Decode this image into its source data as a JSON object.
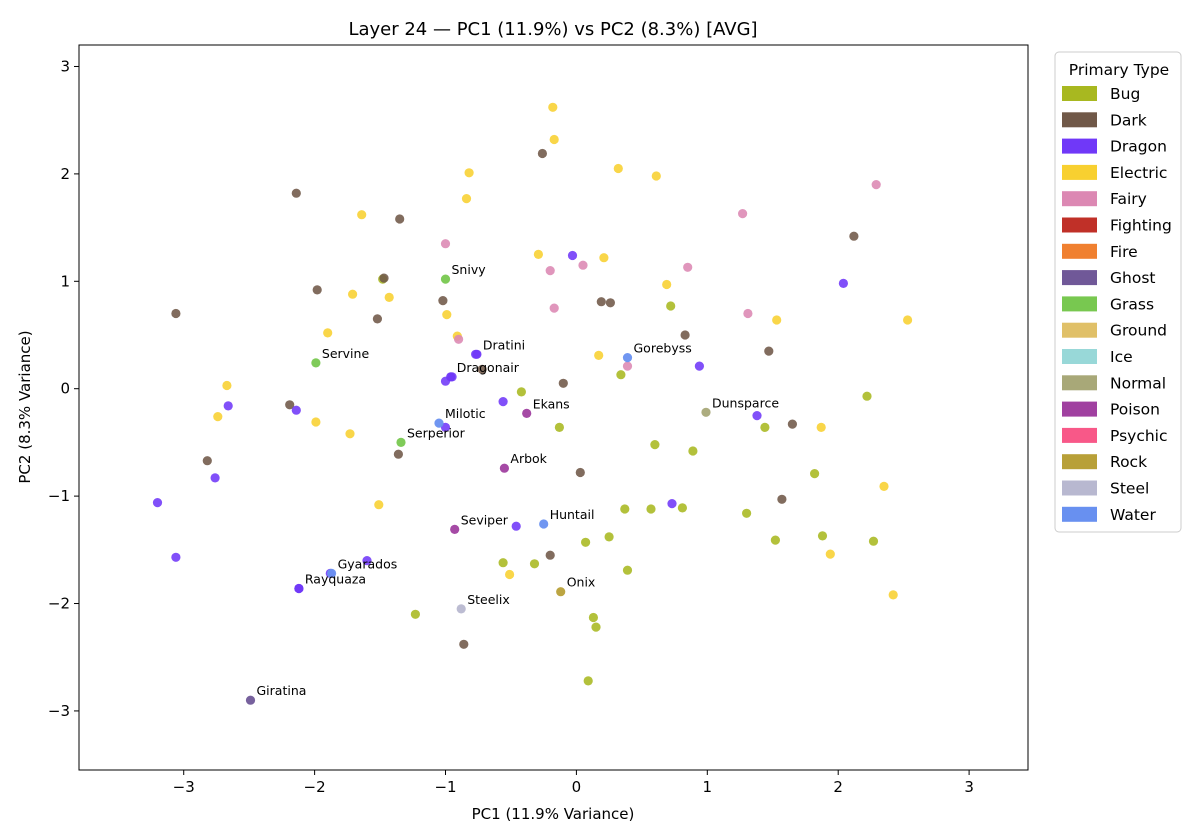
{
  "chart_data": {
    "type": "scatter",
    "title": "Layer 24 — PC1 (11.9%) vs PC2 (8.3%) [AVG]",
    "xlabel": "PC1 (11.9% Variance)",
    "ylabel": "PC2 (8.3% Variance)",
    "xlim": [
      -3.8,
      3.45
    ],
    "ylim": [
      -3.55,
      3.2
    ],
    "xticks": [
      -3,
      -2,
      -1,
      0,
      1,
      2,
      3
    ],
    "yticks": [
      -3,
      -2,
      -1,
      0,
      1,
      2,
      3
    ],
    "xtick_labels": [
      "−3",
      "−2",
      "−1",
      "0",
      "1",
      "2",
      "3"
    ],
    "ytick_labels": [
      "−3",
      "−2",
      "−1",
      "0",
      "1",
      "2",
      "3"
    ],
    "grid": false,
    "legend": {
      "title": "Primary Type",
      "placement": "outside-right-top",
      "entries": [
        {
          "name": "Bug",
          "color": "#a8b820"
        },
        {
          "name": "Dark",
          "color": "#705848"
        },
        {
          "name": "Dragon",
          "color": "#7038f8"
        },
        {
          "name": "Electric",
          "color": "#f8d030"
        },
        {
          "name": "Fairy",
          "color": "#dc88b3"
        },
        {
          "name": "Fighting",
          "color": "#c03028"
        },
        {
          "name": "Fire",
          "color": "#f08030"
        },
        {
          "name": "Ghost",
          "color": "#705898"
        },
        {
          "name": "Grass",
          "color": "#78c850"
        },
        {
          "name": "Ground",
          "color": "#e0c068"
        },
        {
          "name": "Ice",
          "color": "#98d8d8"
        },
        {
          "name": "Normal",
          "color": "#a8a878"
        },
        {
          "name": "Poison",
          "color": "#a040a0"
        },
        {
          "name": "Psychic",
          "color": "#f85888"
        },
        {
          "name": "Rock",
          "color": "#b8a038"
        },
        {
          "name": "Steel",
          "color": "#b8b8d0"
        },
        {
          "name": "Water",
          "color": "#6890f0"
        }
      ]
    },
    "annotations": [
      {
        "text": "Snivy",
        "x": -1.0,
        "y": 1.02,
        "type": "Grass"
      },
      {
        "text": "Dratini",
        "x": -0.76,
        "y": 0.32,
        "type": "Dragon"
      },
      {
        "text": "Servine",
        "x": -1.99,
        "y": 0.24,
        "type": "Grass"
      },
      {
        "text": "Dragonair",
        "x": -0.96,
        "y": 0.11,
        "type": "Dragon"
      },
      {
        "text": "Gorebyss",
        "x": 0.39,
        "y": 0.29,
        "type": "Water"
      },
      {
        "text": "Ekans",
        "x": -0.38,
        "y": -0.23,
        "type": "Poison"
      },
      {
        "text": "Dunsparce",
        "x": 0.99,
        "y": -0.22,
        "type": "Normal"
      },
      {
        "text": "Milotic",
        "x": -1.05,
        "y": -0.32,
        "type": "Water"
      },
      {
        "text": "Serperior",
        "x": -1.34,
        "y": -0.5,
        "type": "Grass"
      },
      {
        "text": "Arbok",
        "x": -0.55,
        "y": -0.74,
        "type": "Poison"
      },
      {
        "text": "Huntail",
        "x": -0.25,
        "y": -1.26,
        "type": "Water"
      },
      {
        "text": "Seviper",
        "x": -0.93,
        "y": -1.31,
        "type": "Poison"
      },
      {
        "text": "Gyarados",
        "x": -1.87,
        "y": -1.72,
        "type": "Water"
      },
      {
        "text": "Rayquaza",
        "x": -2.12,
        "y": -1.86,
        "type": "Dragon"
      },
      {
        "text": "Onix",
        "x": -0.12,
        "y": -1.89,
        "type": "Rock"
      },
      {
        "text": "Steelix",
        "x": -0.88,
        "y": -2.05,
        "type": "Steel"
      },
      {
        "text": "Giratina",
        "x": -2.49,
        "y": -2.9,
        "type": "Ghost"
      }
    ],
    "series": [
      {
        "name": "Bug",
        "color": "#a8b820",
        "points": [
          [
            -0.13,
            -0.36
          ],
          [
            0.25,
            -1.38
          ],
          [
            0.39,
            -1.69
          ],
          [
            -1.23,
            -2.1
          ],
          [
            0.09,
            -2.72
          ],
          [
            0.6,
            -0.52
          ],
          [
            1.52,
            -1.41
          ],
          [
            0.89,
            -0.58
          ],
          [
            -0.56,
            -1.62
          ],
          [
            2.22,
            -0.07
          ],
          [
            1.88,
            -1.37
          ],
          [
            0.13,
            -2.13
          ],
          [
            -0.32,
            -1.63
          ],
          [
            0.37,
            -1.12
          ],
          [
            0.15,
            -2.22
          ],
          [
            0.81,
            -1.11
          ],
          [
            0.34,
            0.13
          ],
          [
            1.3,
            -1.16
          ],
          [
            2.27,
            -1.42
          ],
          [
            1.44,
            -0.36
          ],
          [
            0.57,
            -1.12
          ],
          [
            -1.48,
            1.02
          ],
          [
            0.07,
            -1.43
          ],
          [
            1.82,
            -0.79
          ],
          [
            0.72,
            0.77
          ],
          [
            -0.42,
            -0.03
          ]
        ]
      },
      {
        "name": "Dark",
        "color": "#705848",
        "points": [
          [
            -1.35,
            1.58
          ],
          [
            -2.14,
            1.82
          ],
          [
            -1.98,
            0.92
          ],
          [
            -1.02,
            0.82
          ],
          [
            -1.52,
            0.65
          ],
          [
            -1.47,
            1.03
          ],
          [
            -0.26,
            2.19
          ],
          [
            -0.1,
            0.05
          ],
          [
            0.03,
            -0.78
          ],
          [
            -2.19,
            -0.15
          ],
          [
            -2.82,
            -0.67
          ],
          [
            -1.36,
            -0.61
          ],
          [
            -0.2,
            -1.55
          ],
          [
            -0.86,
            -2.38
          ],
          [
            1.47,
            0.35
          ],
          [
            1.65,
            -0.33
          ],
          [
            2.12,
            1.42
          ],
          [
            -3.06,
            0.7
          ],
          [
            0.83,
            0.5
          ],
          [
            0.26,
            0.8
          ],
          [
            1.57,
            -1.03
          ],
          [
            0.19,
            0.81
          ],
          [
            -0.72,
            0.18
          ]
        ]
      },
      {
        "name": "Dragon",
        "color": "#7038f8",
        "points": [
          [
            -3.2,
            -1.06
          ],
          [
            -3.06,
            -1.57
          ],
          [
            -2.76,
            -0.83
          ],
          [
            -2.66,
            -0.16
          ],
          [
            -2.14,
            -0.2
          ],
          [
            -1.0,
            0.07
          ],
          [
            -0.77,
            0.32
          ],
          [
            -0.95,
            0.11
          ],
          [
            -0.03,
            1.24
          ],
          [
            0.94,
            0.21
          ],
          [
            -2.12,
            -1.86
          ],
          [
            -1.88,
            -1.72
          ],
          [
            -1.0,
            -0.36
          ],
          [
            0.73,
            -1.07
          ],
          [
            1.38,
            -0.25
          ],
          [
            -0.56,
            -0.12
          ],
          [
            2.04,
            0.98
          ],
          [
            -1.6,
            -1.6
          ],
          [
            -0.46,
            -1.28
          ]
        ]
      },
      {
        "name": "Electric",
        "color": "#f8d030",
        "points": [
          [
            -1.64,
            1.62
          ],
          [
            -0.84,
            1.77
          ],
          [
            -0.17,
            2.32
          ],
          [
            0.32,
            2.05
          ],
          [
            0.61,
            1.98
          ],
          [
            0.21,
            1.22
          ],
          [
            -1.71,
            0.88
          ],
          [
            -1.9,
            0.52
          ],
          [
            -0.99,
            0.69
          ],
          [
            -0.82,
            2.01
          ],
          [
            -0.29,
            1.25
          ],
          [
            0.69,
            0.97
          ],
          [
            -1.43,
            0.85
          ],
          [
            -0.91,
            0.49
          ],
          [
            -2.67,
            0.03
          ],
          [
            -2.74,
            -0.26
          ],
          [
            -1.99,
            -0.31
          ],
          [
            -1.73,
            -0.42
          ],
          [
            -1.51,
            -1.08
          ],
          [
            0.17,
            0.31
          ],
          [
            1.53,
            0.64
          ],
          [
            1.87,
            -0.36
          ],
          [
            2.35,
            -0.91
          ],
          [
            2.42,
            -1.92
          ],
          [
            1.94,
            -1.54
          ],
          [
            2.53,
            0.64
          ],
          [
            -0.51,
            -1.73
          ],
          [
            -0.18,
            2.62
          ]
        ]
      },
      {
        "name": "Fairy",
        "color": "#dc88b3",
        "points": [
          [
            -1.0,
            1.35
          ],
          [
            -0.2,
            1.1
          ],
          [
            0.05,
            1.15
          ],
          [
            0.85,
            1.13
          ],
          [
            1.27,
            1.63
          ],
          [
            1.31,
            0.7
          ],
          [
            2.29,
            1.9
          ],
          [
            -0.17,
            0.75
          ],
          [
            0.39,
            0.21
          ],
          [
            -0.9,
            0.46
          ]
        ]
      },
      {
        "name": "Fighting",
        "color": "#c03028"
      },
      {
        "name": "Fire",
        "color": "#f08030"
      },
      {
        "name": "Ghost",
        "color": "#705898"
      },
      {
        "name": "Grass",
        "color": "#78c850"
      },
      {
        "name": "Ground",
        "color": "#e0c068"
      },
      {
        "name": "Ice",
        "color": "#98d8d8"
      },
      {
        "name": "Normal",
        "color": "#a8a878"
      },
      {
        "name": "Poison",
        "color": "#a040a0"
      },
      {
        "name": "Psychic",
        "color": "#f85888"
      },
      {
        "name": "Rock",
        "color": "#b8a038"
      },
      {
        "name": "Steel",
        "color": "#b8b8d0"
      },
      {
        "name": "Water",
        "color": "#6890f0"
      }
    ]
  }
}
